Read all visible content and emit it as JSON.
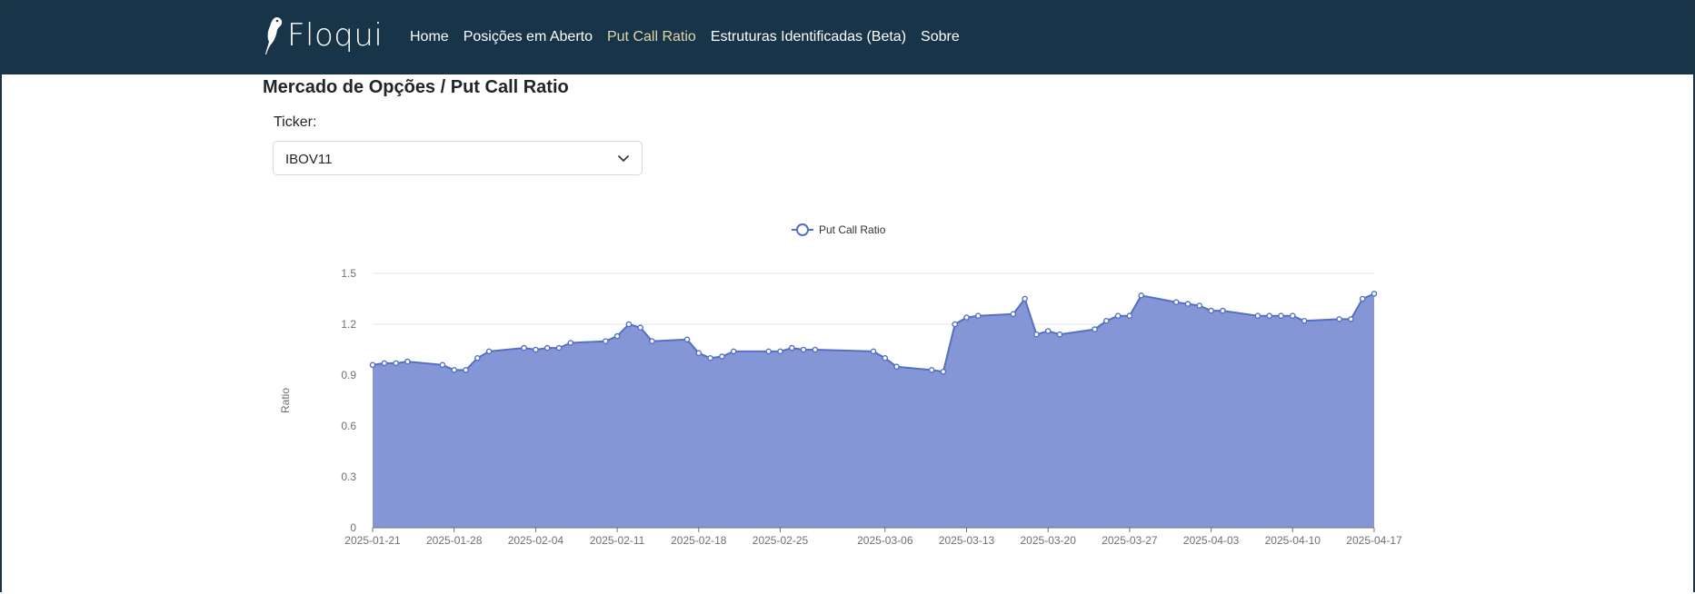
{
  "brand": {
    "name": "Floqui",
    "logo_icon": "bird-logo-icon"
  },
  "nav": {
    "items": [
      {
        "label": "Home",
        "active": false
      },
      {
        "label": "Posições em Aberto",
        "active": false
      },
      {
        "label": "Put Call Ratio",
        "active": true
      },
      {
        "label": "Estruturas Identificadas (Beta)",
        "active": false
      },
      {
        "label": "Sobre",
        "active": false
      }
    ]
  },
  "page": {
    "title": "Mercado de Opções / Put Call Ratio"
  },
  "ticker": {
    "label": "Ticker:",
    "value": "IBOV11",
    "icon": "chevron-down-icon"
  },
  "colors": {
    "navbar": "#173449",
    "active_link": "#e2d6a8",
    "series_line": "#5470c6",
    "series_fill": "#8496d6"
  },
  "chart_data": {
    "type": "area",
    "title": "",
    "xlabel": "",
    "ylabel": "Ratio",
    "ylim": [
      0,
      1.5
    ],
    "yticks": [
      "0",
      "0.3",
      "0.6",
      "0.9",
      "1.2",
      "1.5"
    ],
    "xtick_labels": [
      "2025-01-21",
      "2025-01-28",
      "2025-02-04",
      "2025-02-11",
      "2025-02-18",
      "2025-02-25",
      "2025-03-06",
      "2025-03-13",
      "2025-03-20",
      "2025-03-27",
      "2025-04-03",
      "2025-04-10",
      "2025-04-17"
    ],
    "grid": true,
    "legend": "top-center",
    "series": [
      {
        "name": "Put Call Ratio",
        "x": [
          "2025-01-21",
          "2025-01-22",
          "2025-01-23",
          "2025-01-24",
          "2025-01-27",
          "2025-01-28",
          "2025-01-29",
          "2025-01-30",
          "2025-01-31",
          "2025-02-03",
          "2025-02-04",
          "2025-02-05",
          "2025-02-06",
          "2025-02-07",
          "2025-02-10",
          "2025-02-11",
          "2025-02-12",
          "2025-02-13",
          "2025-02-14",
          "2025-02-17",
          "2025-02-18",
          "2025-02-19",
          "2025-02-20",
          "2025-02-21",
          "2025-02-24",
          "2025-02-25",
          "2025-02-26",
          "2025-02-27",
          "2025-02-28",
          "2025-03-05",
          "2025-03-06",
          "2025-03-07",
          "2025-03-10",
          "2025-03-11",
          "2025-03-12",
          "2025-03-13",
          "2025-03-14",
          "2025-03-17",
          "2025-03-18",
          "2025-03-19",
          "2025-03-20",
          "2025-03-21",
          "2025-03-24",
          "2025-03-25",
          "2025-03-26",
          "2025-03-27",
          "2025-03-28",
          "2025-03-31",
          "2025-04-01",
          "2025-04-02",
          "2025-04-03",
          "2025-04-04",
          "2025-04-07",
          "2025-04-08",
          "2025-04-09",
          "2025-04-10",
          "2025-04-11",
          "2025-04-14",
          "2025-04-15",
          "2025-04-16",
          "2025-04-17"
        ],
        "values": [
          0.96,
          0.97,
          0.97,
          0.98,
          0.96,
          0.93,
          0.93,
          1.0,
          1.04,
          1.06,
          1.05,
          1.06,
          1.06,
          1.09,
          1.1,
          1.13,
          1.2,
          1.18,
          1.1,
          1.11,
          1.03,
          1.0,
          1.01,
          1.04,
          1.04,
          1.04,
          1.06,
          1.05,
          1.05,
          1.04,
          1.0,
          0.95,
          0.93,
          0.92,
          1.2,
          1.24,
          1.25,
          1.26,
          1.35,
          1.14,
          1.16,
          1.14,
          1.17,
          1.22,
          1.25,
          1.25,
          1.37,
          1.33,
          1.32,
          1.31,
          1.28,
          1.28,
          1.25,
          1.25,
          1.25,
          1.25,
          1.22,
          1.23,
          1.23,
          1.35,
          1.38
        ]
      }
    ]
  }
}
